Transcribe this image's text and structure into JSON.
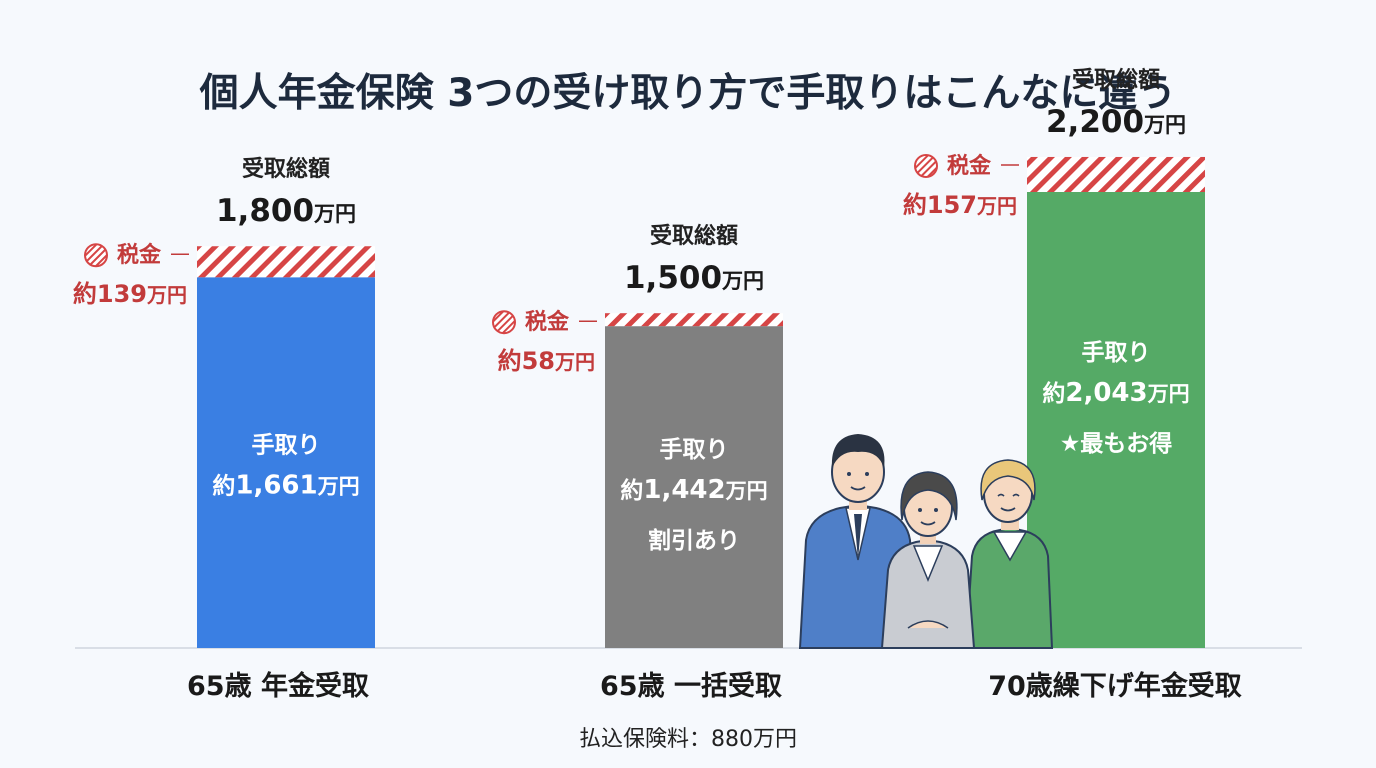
{
  "chart_data": {
    "type": "bar",
    "stacked": true,
    "title": "個人年金保険 3つの受け取り方で手取りはこんなに違う",
    "total_label": "受取総額",
    "tax_label": "税金",
    "net_label": "手取り",
    "approx_prefix": "約",
    "unit": "万円",
    "categories": [
      "65歳 年金受取",
      "65歳 一括受取",
      "70歳繰下げ年金受取"
    ],
    "series": [
      {
        "name": "手取り",
        "values": [
          1661,
          1442,
          2043
        ],
        "colors": [
          "#3a7fe3",
          "#808080",
          "#55aa66"
        ]
      },
      {
        "name": "税金",
        "values": [
          139,
          58,
          157
        ],
        "color": "#d64545"
      }
    ],
    "totals": [
      1800,
      1500,
      2200
    ],
    "notes": [
      "",
      "割引あり",
      "★最もお得"
    ],
    "ylim": [
      0,
      2200
    ],
    "footnote": "払込保険料：880万円"
  }
}
